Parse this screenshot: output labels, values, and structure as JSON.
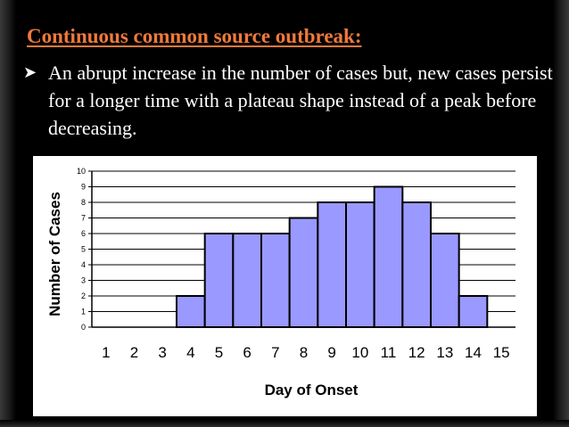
{
  "slide": {
    "title": "Continuous common source outbreak:",
    "bullet_icon": "arrow-bullet-icon",
    "bullet_text": "An abrupt increase in the number of cases but, new cases persist for a longer time with a plateau shape instead of a peak before decreasing."
  },
  "colors": {
    "background": "#000000",
    "title": "#f07a3a",
    "text": "#ffffff",
    "bar_fill": "#9999ff",
    "bar_stroke": "#000000"
  },
  "chart_data": {
    "type": "bar",
    "categories": [
      "1",
      "2",
      "3",
      "4",
      "5",
      "6",
      "7",
      "8",
      "9",
      "10",
      "11",
      "12",
      "13",
      "14",
      "15"
    ],
    "values": [
      0,
      0,
      0,
      2,
      6,
      6,
      6,
      7,
      8,
      8,
      9,
      8,
      6,
      2,
      0
    ],
    "xlabel": "Day of Onset",
    "ylabel": "Number of Cases",
    "ylim": [
      0,
      10
    ],
    "yticks": [
      0,
      1,
      2,
      3,
      4,
      5,
      6,
      7,
      8,
      9,
      10
    ],
    "grid": true,
    "legend": "none"
  }
}
